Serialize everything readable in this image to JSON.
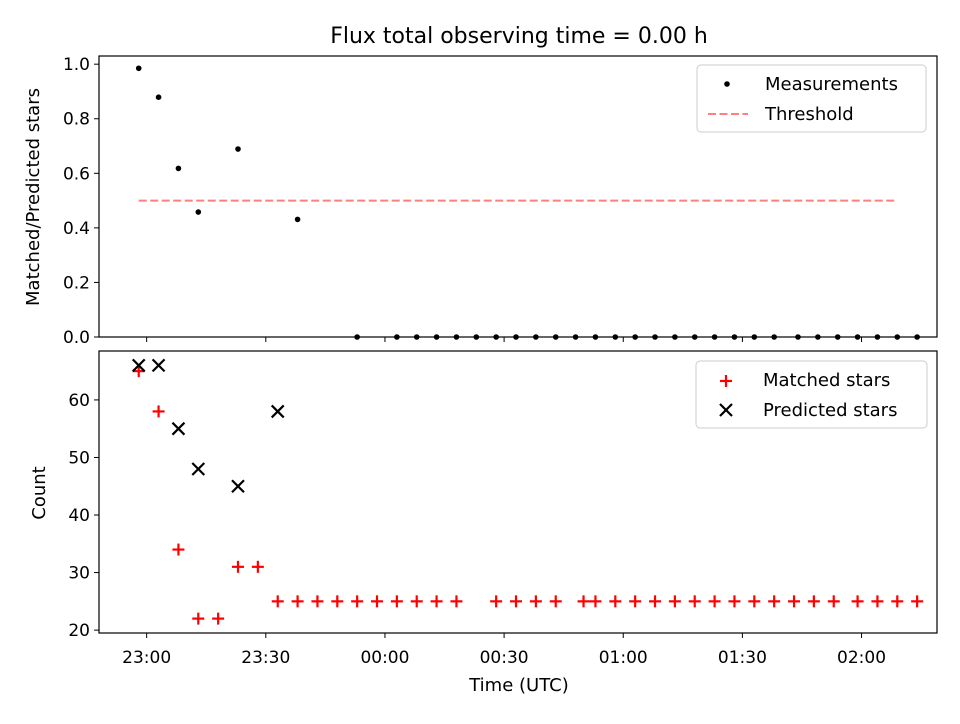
{
  "title": "Flux total observing time = 0.00 h",
  "xlabel": "Time (UTC)",
  "x_ticks": [
    {
      "label": "23:00",
      "t": 0
    },
    {
      "label": "23:30",
      "t": 30
    },
    {
      "label": "00:00",
      "t": 60
    },
    {
      "label": "00:30",
      "t": 90
    },
    {
      "label": "01:00",
      "t": 120
    },
    {
      "label": "01:30",
      "t": 150
    },
    {
      "label": "02:00",
      "t": 180
    }
  ],
  "chart_data": [
    {
      "type": "scatter",
      "xlim_minutes": [
        -12,
        199
      ],
      "ylabel": "Matched/Predicted stars",
      "ylim": [
        0,
        1.03
      ],
      "yticks": [
        "0.0",
        "0.2",
        "0.4",
        "0.6",
        "0.8",
        "1.0"
      ],
      "legend": {
        "placement": "top-right",
        "entries": [
          "Measurements",
          "Threshold"
        ]
      },
      "series": [
        {
          "name": "Measurements",
          "color": "#000000",
          "x_minutes": [
            -2,
            3,
            8,
            13,
            23,
            38,
            53,
            63,
            68,
            73,
            78,
            83,
            88,
            93,
            98,
            103,
            108,
            113,
            118,
            123,
            128,
            133,
            138,
            143,
            148,
            153,
            158,
            164,
            169,
            174,
            179,
            184,
            189,
            194
          ],
          "values": [
            0.985,
            0.879,
            0.618,
            0.458,
            0.689,
            0.431,
            0,
            0,
            0,
            0,
            0,
            0,
            0,
            0,
            0,
            0,
            0,
            0,
            0,
            0,
            0,
            0,
            0,
            0,
            0,
            0,
            0,
            0,
            0,
            0,
            0,
            0,
            0,
            0
          ]
        },
        {
          "name": "Threshold",
          "color": "#ff7f7f",
          "x_minutes": [
            -2,
            189
          ],
          "values": [
            0.5,
            0.5
          ]
        }
      ]
    },
    {
      "type": "scatter",
      "xlim_minutes": [
        -12,
        199
      ],
      "ylabel": "Count",
      "ylim": [
        19.5,
        68.5
      ],
      "yticks": [
        "20",
        "30",
        "40",
        "50",
        "60"
      ],
      "legend": {
        "placement": "top-right",
        "entries": [
          "Matched stars",
          "Predicted stars"
        ]
      },
      "series": [
        {
          "name": "Matched stars",
          "color": "#ff0000",
          "marker": "plus",
          "x_minutes": [
            -2,
            3,
            8,
            13,
            18,
            23,
            28,
            33,
            38,
            43,
            48,
            53,
            58,
            63,
            68,
            73,
            78,
            88,
            93,
            98,
            103,
            110,
            113,
            118,
            123,
            128,
            133,
            138,
            143,
            148,
            153,
            158,
            163,
            168,
            173,
            179,
            184,
            189,
            194
          ],
          "values": [
            65,
            58,
            34,
            22,
            22,
            31,
            31,
            25,
            25,
            25,
            25,
            25,
            25,
            25,
            25,
            25,
            25,
            25,
            25,
            25,
            25,
            25,
            25,
            25,
            25,
            25,
            25,
            25,
            25,
            25,
            25,
            25,
            25,
            25,
            25,
            25,
            25,
            25,
            25
          ]
        },
        {
          "name": "Predicted stars",
          "color": "#000000",
          "marker": "x",
          "x_minutes": [
            -2,
            3,
            8,
            13,
            23,
            33
          ],
          "values": [
            66,
            66,
            55,
            48,
            45,
            58
          ]
        }
      ]
    }
  ]
}
